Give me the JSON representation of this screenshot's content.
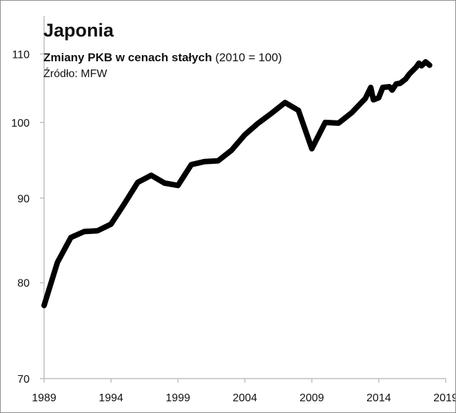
{
  "chart_data": {
    "type": "line",
    "title": "Japonia",
    "subtitle_bold": "Zmiany PKB w cenach stałych",
    "subtitle_normal": "(2010 = 100)",
    "source": "Źródło: MFW",
    "xlabel": "",
    "ylabel": "",
    "y_scale": "log",
    "xlim": [
      1989,
      2019
    ],
    "ylim": [
      70,
      116
    ],
    "x_ticks": [
      "1989",
      "1994",
      "1999",
      "2004",
      "2009",
      "2014",
      "2019"
    ],
    "y_ticks": [
      "70",
      "80",
      "90",
      "100",
      "110"
    ],
    "grid": false,
    "series": [
      {
        "name": "Japonia",
        "color": "#000000",
        "x": [
          1989,
          1990,
          1991,
          1992,
          1993,
          1994,
          1995,
          1996,
          1997,
          1998,
          1999,
          2000,
          2001,
          2002,
          2003,
          2004,
          2005,
          2006,
          2007,
          2008,
          2009,
          2010,
          2011,
          2012,
          2013,
          2013.4,
          2013.6,
          2014.0,
          2014.3,
          2014.8,
          2015.0,
          2015.3,
          2015.6,
          2016.0,
          2016.3,
          2016.8,
          2017.0,
          2017.2,
          2017.5,
          2017.8
        ],
        "y": [
          77.5,
          82.3,
          85.2,
          85.9,
          86.0,
          86.8,
          89.3,
          92.0,
          92.9,
          91.9,
          91.6,
          94.3,
          94.7,
          94.8,
          96.2,
          98.3,
          99.9,
          101.3,
          102.8,
          101.7,
          96.4,
          100.0,
          99.9,
          101.4,
          103.4,
          105.0,
          103.2,
          103.5,
          105.0,
          105.1,
          104.6,
          105.5,
          105.6,
          106.2,
          107.0,
          108.0,
          108.6,
          108.2,
          108.8,
          108.3
        ]
      }
    ]
  }
}
